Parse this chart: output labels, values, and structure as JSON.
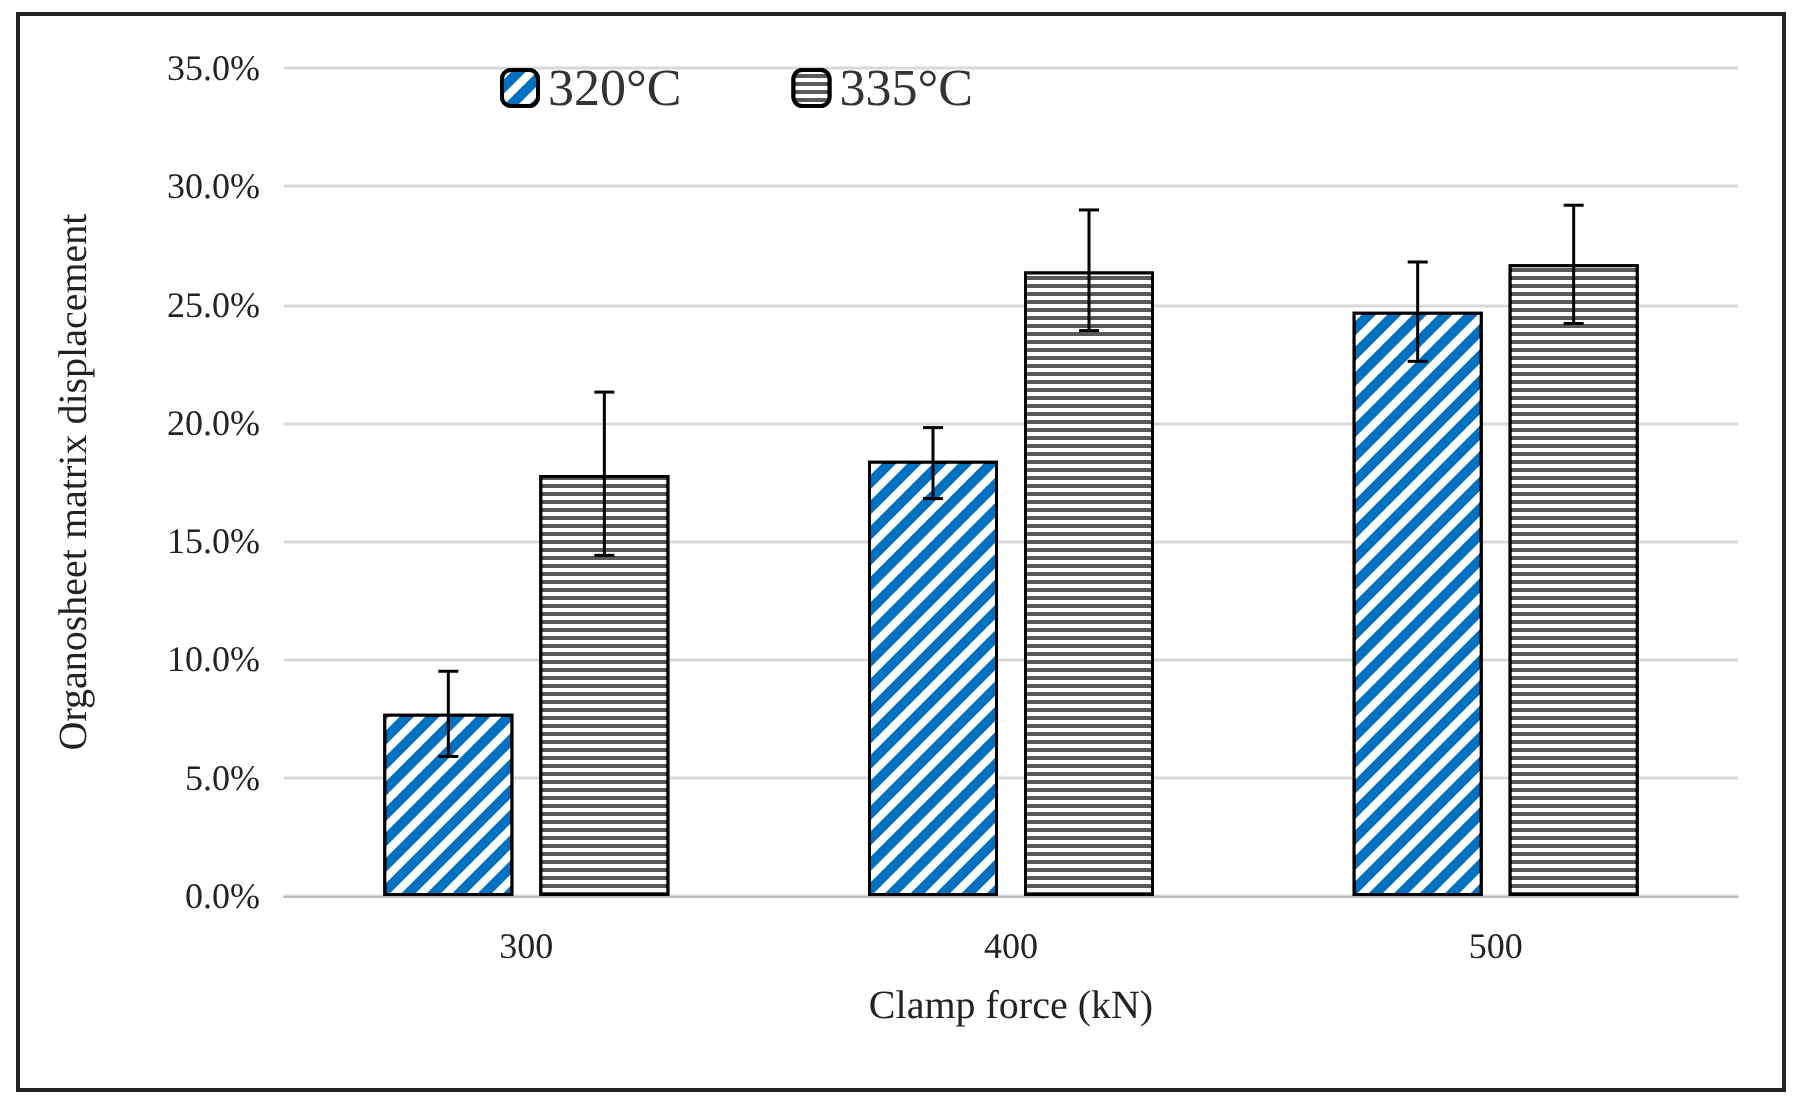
{
  "chart_data": {
    "type": "bar",
    "xlabel": "Clamp force (kN)",
    "ylabel": "Organosheet matrix displacement",
    "categories": [
      "300",
      "400",
      "500"
    ],
    "series": [
      {
        "name": "320°C",
        "color": "#0070c0",
        "values": [
          7.7,
          18.4,
          24.7
        ],
        "errors": [
          [
            5.9,
            9.5
          ],
          [
            16.8,
            19.8
          ],
          [
            22.6,
            26.8
          ]
        ]
      },
      {
        "name": "335°C",
        "color": "#595959",
        "values": [
          17.8,
          26.4,
          26.7
        ],
        "errors": [
          [
            14.4,
            21.3
          ],
          [
            23.9,
            29.0
          ],
          [
            24.2,
            29.2
          ]
        ]
      }
    ],
    "ylim": [
      0,
      35
    ],
    "yticks": [
      {
        "value": 0,
        "label": "0.0%"
      },
      {
        "value": 5,
        "label": "5.0%"
      },
      {
        "value": 10,
        "label": "10.0%"
      },
      {
        "value": 15,
        "label": "15.0%"
      },
      {
        "value": 20,
        "label": "20.0%"
      },
      {
        "value": 25,
        "label": "25.0%"
      },
      {
        "value": 30,
        "label": "30.0%"
      },
      {
        "value": 35,
        "label": "35.0%"
      }
    ],
    "grid": "y",
    "legend": "top left"
  }
}
